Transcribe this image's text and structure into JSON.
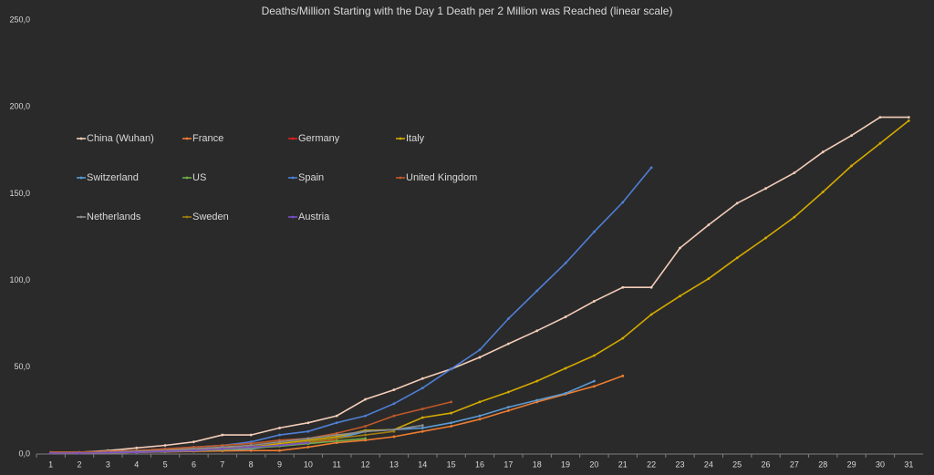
{
  "chart_data": {
    "type": "line",
    "title": "Deaths/Million Starting with the Day 1 Death per 2 Million was Reached (linear scale)",
    "categories": [
      "1",
      "2",
      "3",
      "4",
      "5",
      "6",
      "7",
      "8",
      "9",
      "10",
      "11",
      "12",
      "13",
      "14",
      "15",
      "16",
      "17",
      "18",
      "19",
      "20",
      "21",
      "22",
      "23",
      "24",
      "25",
      "26",
      "27",
      "28",
      "29",
      "30",
      "31"
    ],
    "ylim": [
      0,
      250
    ],
    "yticks": [
      {
        "value": 0,
        "label": "0,0"
      },
      {
        "value": 50,
        "label": "50,0"
      },
      {
        "value": 100,
        "label": "100,0"
      },
      {
        "value": 150,
        "label": "150,0"
      },
      {
        "value": 200,
        "label": "200,0"
      },
      {
        "value": 250,
        "label": "250,0"
      }
    ],
    "legend": "upper left",
    "series": [
      {
        "name": "China (Wuhan)",
        "color": "#f4cdb9",
        "values": [
          1,
          1,
          2,
          3.5,
          5,
          7,
          11,
          11,
          15,
          18,
          22,
          31.5,
          37,
          43.5,
          49,
          55.7,
          63.5,
          71,
          79,
          88,
          96,
          96,
          118.7,
          132,
          144.5,
          153,
          162,
          174,
          183.5,
          194,
          194
        ]
      },
      {
        "name": "France",
        "color": "#ed7d31",
        "values": [
          0.5,
          0.5,
          0.7,
          1,
          1.2,
          1.5,
          1.8,
          2,
          2,
          4,
          6.5,
          8,
          10,
          13,
          16,
          20,
          25,
          30,
          34.5,
          39,
          45,
          null,
          null,
          null,
          null,
          null,
          null,
          null,
          null,
          null,
          null
        ]
      },
      {
        "name": "Germany",
        "color": "#e02020",
        "values": [
          0.5,
          0.5,
          0.8,
          1,
          1.5,
          2,
          3,
          4,
          5,
          6.5,
          8,
          null,
          null,
          null,
          null,
          null,
          null,
          null,
          null,
          null,
          null,
          null,
          null,
          null,
          null,
          null,
          null,
          null,
          null,
          null,
          null
        ]
      },
      {
        "name": "Italy",
        "color": "#d4a900",
        "values": [
          1,
          1,
          1.5,
          2,
          2.5,
          3,
          3.5,
          4,
          6,
          8,
          10,
          13.6,
          14,
          21,
          23.6,
          30,
          35.7,
          42,
          49.4,
          56.7,
          66.7,
          80.4,
          91,
          101,
          113,
          124.5,
          136.5,
          151,
          166,
          179,
          192
        ]
      },
      {
        "name": "Switzerland",
        "color": "#5b9bd5",
        "values": [
          0.5,
          0.5,
          0.8,
          1,
          1.5,
          2,
          2.5,
          3,
          5,
          7,
          9,
          13,
          14,
          15,
          18,
          22,
          27,
          31,
          35,
          42,
          null,
          null,
          null,
          null,
          null,
          null,
          null,
          null,
          null,
          null,
          null
        ]
      },
      {
        "name": "US",
        "color": "#70ad47",
        "values": [
          0.5,
          0.5,
          0.7,
          1,
          1.3,
          1.8,
          2.5,
          3.5,
          4.5,
          6,
          7.5,
          9,
          null,
          null,
          null,
          null,
          null,
          null,
          null,
          null,
          null,
          null,
          null,
          null,
          null,
          null,
          null,
          null,
          null,
          null,
          null
        ]
      },
      {
        "name": "Spain",
        "color": "#4f7fd6",
        "values": [
          0.5,
          1,
          1.5,
          2,
          3,
          4,
          5,
          7,
          11,
          13,
          18,
          22,
          29,
          38,
          49,
          60,
          78,
          94,
          110,
          128,
          145,
          165,
          null,
          null,
          null,
          null,
          null,
          null,
          null,
          null,
          null
        ]
      },
      {
        "name": "United Kingdom",
        "color": "#c0582a",
        "values": [
          1,
          1,
          1.5,
          2,
          3,
          4,
          5,
          6,
          8,
          9,
          12,
          16,
          22,
          26,
          30,
          null,
          null,
          null,
          null,
          null,
          null,
          null,
          null,
          null,
          null,
          null,
          null,
          null,
          null,
          null,
          null
        ]
      },
      {
        "name": "Netherlands",
        "color": "#8c8c8c",
        "values": [
          0.5,
          0.5,
          1,
          1.5,
          2,
          3,
          4,
          5,
          7,
          9,
          11,
          13,
          14,
          16.5,
          null,
          null,
          null,
          null,
          null,
          null,
          null,
          null,
          null,
          null,
          null,
          null,
          null,
          null,
          null,
          null,
          null
        ]
      },
      {
        "name": "Sweden",
        "color": "#a07c10",
        "values": [
          0.5,
          0.5,
          0.8,
          1,
          1.5,
          2,
          3,
          4,
          5,
          7,
          9,
          11,
          13,
          null,
          null,
          null,
          null,
          null,
          null,
          null,
          null,
          null,
          null,
          null,
          null,
          null,
          null,
          null,
          null,
          null,
          null
        ]
      },
      {
        "name": "Austria",
        "color": "#7a4fc8",
        "values": [
          0.5,
          0.5,
          0.8,
          1,
          1.5,
          2,
          3,
          4,
          5,
          6.5,
          null,
          null,
          null,
          null,
          null,
          null,
          null,
          null,
          null,
          null,
          null,
          null,
          null,
          null,
          null,
          null,
          null,
          null,
          null,
          null,
          null
        ]
      }
    ]
  }
}
